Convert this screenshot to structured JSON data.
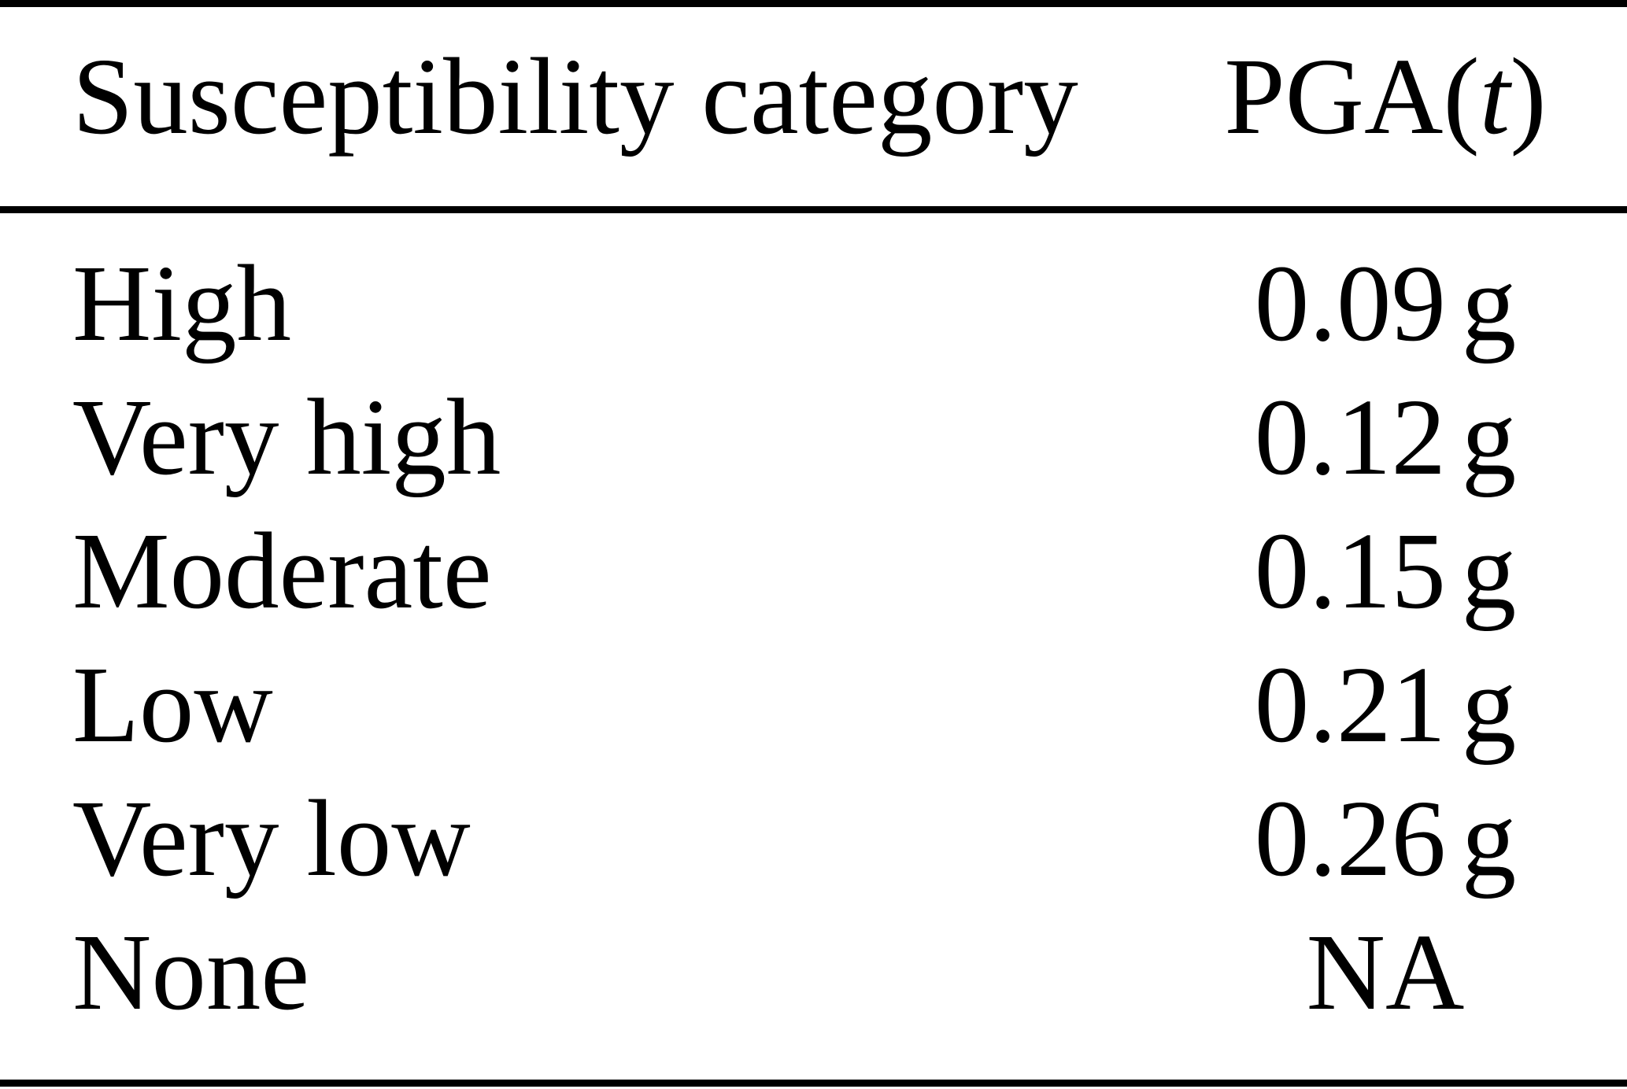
{
  "colors": {
    "background": "#ffffff",
    "text": "#000000",
    "rule": "#000000"
  },
  "table": {
    "header": {
      "category": "Susceptibility category",
      "pga_prefix": "PGA(",
      "pga_variable": "t",
      "pga_suffix": ")"
    },
    "rows": [
      {
        "category": "High",
        "pga": "0.09 g"
      },
      {
        "category": "Very high",
        "pga": "0.12 g"
      },
      {
        "category": "Moderate",
        "pga": "0.15 g"
      },
      {
        "category": "Low",
        "pga": "0.21 g"
      },
      {
        "category": "Very low",
        "pga": "0.26 g"
      },
      {
        "category": "None",
        "pga": "NA"
      }
    ]
  },
  "chart_data": {
    "type": "table",
    "columns": [
      "Susceptibility category",
      "PGA(t)"
    ],
    "rows": [
      [
        "High",
        "0.09 g"
      ],
      [
        "Very high",
        "0.12 g"
      ],
      [
        "Moderate",
        "0.15 g"
      ],
      [
        "Low",
        "0.21 g"
      ],
      [
        "Very low",
        "0.26 g"
      ],
      [
        "None",
        "NA"
      ]
    ]
  }
}
